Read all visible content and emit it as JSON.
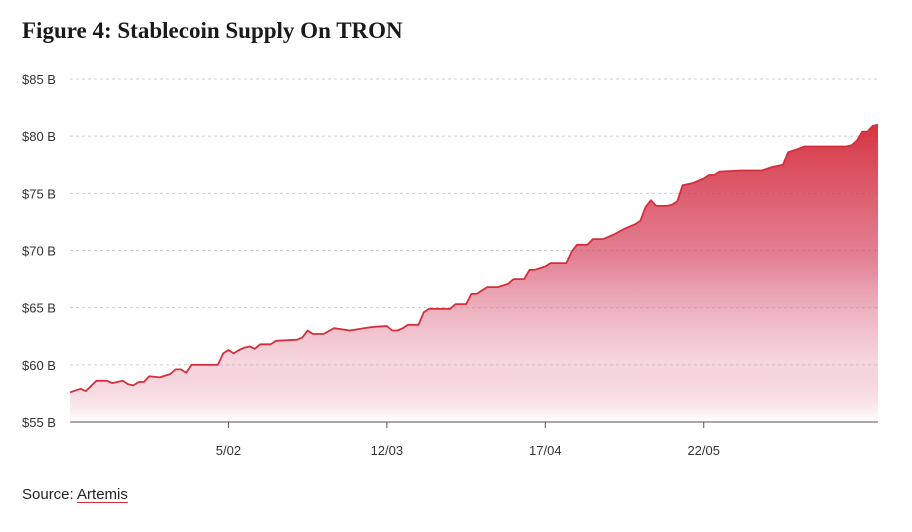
{
  "chart_data": {
    "type": "area",
    "title": "Figure 4: Stablecoin Supply On TRON",
    "xlabel": "",
    "ylabel": "",
    "ylim": [
      55,
      85
    ],
    "yticks": [
      55,
      60,
      65,
      70,
      75,
      80,
      85
    ],
    "ytick_labels": [
      "$55 B",
      "$60 B",
      "$65 B",
      "$70 B",
      "$75 B",
      "$80 B",
      "$85 B"
    ],
    "xlim": [
      0,
      152
    ],
    "xticks": [
      30,
      60,
      90,
      120
    ],
    "xtick_labels": [
      "5/02",
      "12/03",
      "17/04",
      "22/05"
    ],
    "grid": true,
    "series": [
      {
        "name": "Stablecoin Supply",
        "color": "#d32f3c",
        "points": [
          [
            0,
            57.6
          ],
          [
            2,
            57.9
          ],
          [
            3,
            57.7
          ],
          [
            5,
            58.6
          ],
          [
            7,
            58.6
          ],
          [
            8,
            58.4
          ],
          [
            10,
            58.6
          ],
          [
            11,
            58.3
          ],
          [
            12,
            58.2
          ],
          [
            13,
            58.5
          ],
          [
            14,
            58.5
          ],
          [
            15,
            59.0
          ],
          [
            17,
            58.9
          ],
          [
            19,
            59.2
          ],
          [
            20,
            59.6
          ],
          [
            21,
            59.6
          ],
          [
            22,
            59.3
          ],
          [
            23,
            60.0
          ],
          [
            28,
            60.0
          ],
          [
            29,
            61.0
          ],
          [
            30,
            61.3
          ],
          [
            31,
            61.0
          ],
          [
            32,
            61.3
          ],
          [
            33,
            61.5
          ],
          [
            34,
            61.6
          ],
          [
            35,
            61.4
          ],
          [
            36,
            61.8
          ],
          [
            38,
            61.8
          ],
          [
            39,
            62.1
          ],
          [
            43,
            62.2
          ],
          [
            44,
            62.4
          ],
          [
            45,
            63.0
          ],
          [
            46,
            62.7
          ],
          [
            48,
            62.7
          ],
          [
            50,
            63.2
          ],
          [
            53,
            63.0
          ],
          [
            57,
            63.3
          ],
          [
            60,
            63.4
          ],
          [
            61,
            63.0
          ],
          [
            62,
            63.0
          ],
          [
            63,
            63.2
          ],
          [
            64,
            63.5
          ],
          [
            66,
            63.5
          ],
          [
            67,
            64.6
          ],
          [
            68,
            64.9
          ],
          [
            72,
            64.9
          ],
          [
            73,
            65.3
          ],
          [
            75,
            65.3
          ],
          [
            76,
            66.2
          ],
          [
            77,
            66.2
          ],
          [
            79,
            66.8
          ],
          [
            81,
            66.8
          ],
          [
            83,
            67.1
          ],
          [
            84,
            67.5
          ],
          [
            86,
            67.5
          ],
          [
            87,
            68.3
          ],
          [
            88,
            68.3
          ],
          [
            90,
            68.6
          ],
          [
            91,
            68.9
          ],
          [
            94,
            68.9
          ],
          [
            95,
            69.9
          ],
          [
            96,
            70.5
          ],
          [
            98,
            70.5
          ],
          [
            99,
            71.0
          ],
          [
            101,
            71.0
          ],
          [
            103,
            71.4
          ],
          [
            105,
            71.9
          ],
          [
            107,
            72.3
          ],
          [
            108,
            72.6
          ],
          [
            109,
            73.8
          ],
          [
            110,
            74.4
          ],
          [
            111,
            73.9
          ],
          [
            113,
            73.9
          ],
          [
            114,
            74.0
          ],
          [
            115,
            74.3
          ],
          [
            116,
            75.7
          ],
          [
            118,
            75.9
          ],
          [
            120,
            76.3
          ],
          [
            121,
            76.6
          ],
          [
            122,
            76.6
          ],
          [
            123,
            76.9
          ],
          [
            127,
            77.0
          ],
          [
            131,
            77.0
          ],
          [
            133,
            77.3
          ],
          [
            135,
            77.5
          ],
          [
            136,
            78.6
          ],
          [
            138,
            78.9
          ],
          [
            139,
            79.1
          ],
          [
            147,
            79.1
          ],
          [
            148,
            79.2
          ],
          [
            149,
            79.6
          ],
          [
            150,
            80.4
          ],
          [
            151,
            80.4
          ],
          [
            152,
            80.9
          ],
          [
            153,
            81.0
          ]
        ]
      }
    ]
  },
  "source": {
    "prefix": "Source: ",
    "link_text": "Artemis"
  }
}
